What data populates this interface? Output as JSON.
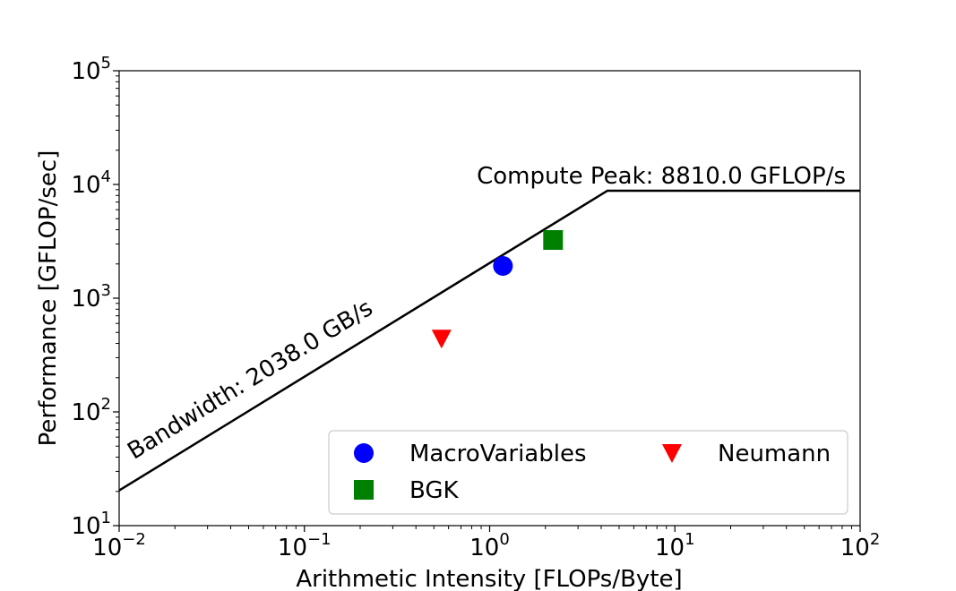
{
  "chart_data": {
    "type": "scatter",
    "x_scale": "log",
    "y_scale": "log",
    "xlim": [
      0.01,
      100
    ],
    "ylim": [
      10,
      100000
    ],
    "xlabel": "Arithmetic Intensity [FLOPs/Byte]",
    "ylabel": "Performance [GFLOP/sec]",
    "x_ticks": [
      {
        "value": 0.01,
        "base": "10",
        "exp": "−2"
      },
      {
        "value": 0.1,
        "base": "10",
        "exp": "−1"
      },
      {
        "value": 1,
        "base": "10",
        "exp": "0"
      },
      {
        "value": 10,
        "base": "10",
        "exp": "1"
      },
      {
        "value": 100,
        "base": "10",
        "exp": "2"
      }
    ],
    "y_ticks": [
      {
        "value": 10,
        "base": "10",
        "exp": "1"
      },
      {
        "value": 100,
        "base": "10",
        "exp": "2"
      },
      {
        "value": 1000,
        "base": "10",
        "exp": "3"
      },
      {
        "value": 10000,
        "base": "10",
        "exp": "4"
      },
      {
        "value": 100000,
        "base": "10",
        "exp": "5"
      }
    ],
    "roofline": {
      "bandwidth_gb_s": 2038.0,
      "peak_gflops": 8810.0,
      "bandwidth_label": "Bandwidth: 2038.0 GB/s",
      "peak_label": "Compute Peak: 8810.0 GFLOP/s",
      "color": "#000000"
    },
    "series": [
      {
        "name": "MacroVariables",
        "marker": "circle",
        "color": "#0000ff",
        "x": 1.18,
        "y": 1920
      },
      {
        "name": "BGK",
        "marker": "square",
        "color": "#008000",
        "x": 2.2,
        "y": 3250
      },
      {
        "name": "Neumann",
        "marker": "triangle-down",
        "color": "#ff0000",
        "x": 0.55,
        "y": 440
      }
    ],
    "legend": {
      "placement": "lower-right",
      "columns": 2
    }
  }
}
